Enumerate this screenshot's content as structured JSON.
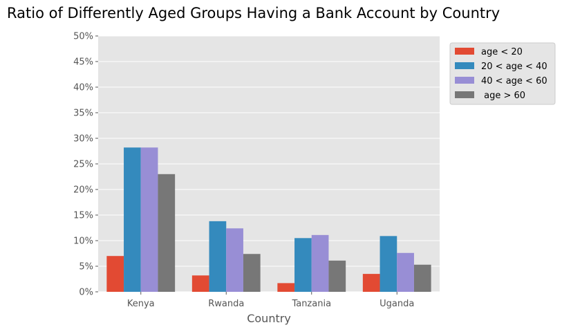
{
  "chart_data": {
    "type": "bar",
    "title": "Ratio of Differently Aged Groups Having a Bank Account by Country",
    "xlabel": "Country",
    "ylabel": "",
    "categories": [
      "Kenya",
      "Rwanda",
      "Tanzania",
      "Uganda"
    ],
    "ylim": [
      0,
      50
    ],
    "yticks": [
      "0%",
      "5%",
      "10%",
      "15%",
      "20%",
      "25%",
      "30%",
      "35%",
      "40%",
      "45%",
      "50%"
    ],
    "grid": true,
    "legend_position": "top-right outside",
    "series": [
      {
        "name": "age < 20",
        "color": "#E24A33",
        "values": [
          7.0,
          3.2,
          1.7,
          3.5
        ]
      },
      {
        "name": "20 < age < 40",
        "color": "#348ABD",
        "values": [
          28.2,
          13.8,
          10.5,
          10.9
        ]
      },
      {
        "name": "40 < age < 60",
        "color": "#988ED5",
        "values": [
          28.2,
          12.4,
          11.1,
          7.6
        ]
      },
      {
        "name": " age > 60",
        "color": "#777777",
        "values": [
          23.0,
          7.4,
          6.1,
          5.3
        ]
      }
    ],
    "plot_background": "#E5E5E5",
    "grid_color": "#FFFFFF",
    "tick_color": "#555555"
  }
}
